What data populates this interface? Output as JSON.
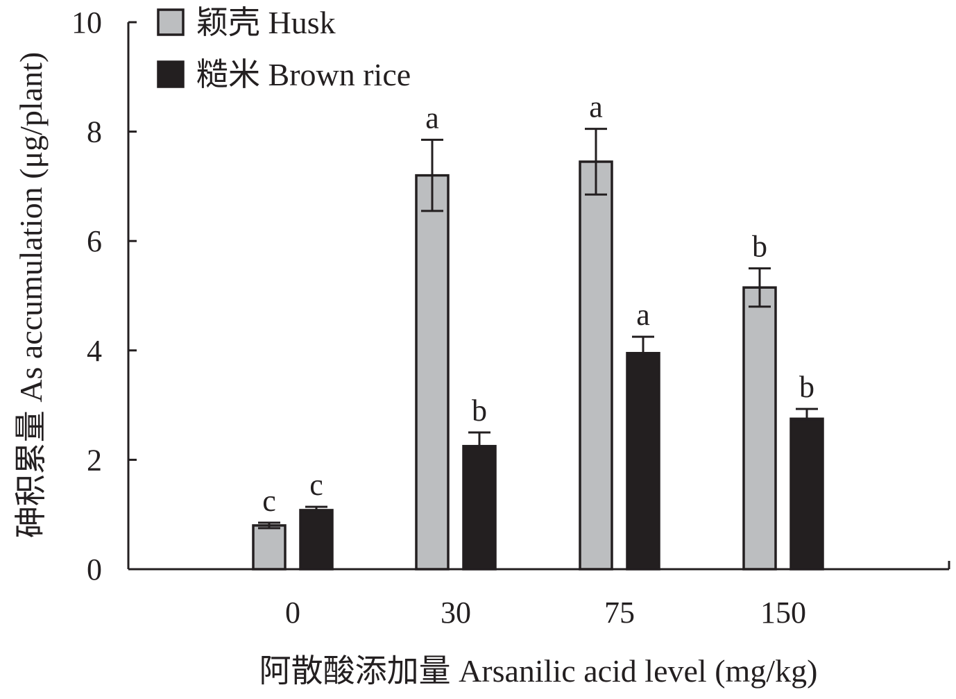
{
  "chart_data": {
    "type": "bar",
    "xlabel": "阿散酸添加量 Arsanilic acid level (mg/kg)",
    "ylabel": "砷积累量 As accumulation (μg/plant)",
    "categories": [
      "0",
      "30",
      "75",
      "150"
    ],
    "ylim": [
      0,
      10
    ],
    "yticks": [
      "0",
      "2",
      "4",
      "6",
      "8",
      "10"
    ],
    "grid": false,
    "legend_position": "top-left",
    "series": [
      {
        "name": "颖壳 Husk",
        "color": "#bcbec0",
        "values": [
          0.8,
          7.2,
          7.45,
          5.15
        ],
        "errors": [
          0.05,
          0.65,
          0.6,
          0.35
        ],
        "labels": [
          "c",
          "a",
          "a",
          "b"
        ]
      },
      {
        "name": "糙米 Brown rice",
        "color": "#231f20",
        "values": [
          1.08,
          2.25,
          3.95,
          2.75
        ],
        "errors": [
          0.06,
          0.25,
          0.3,
          0.18
        ],
        "labels": [
          "c",
          "b",
          "a",
          "b"
        ]
      }
    ]
  }
}
